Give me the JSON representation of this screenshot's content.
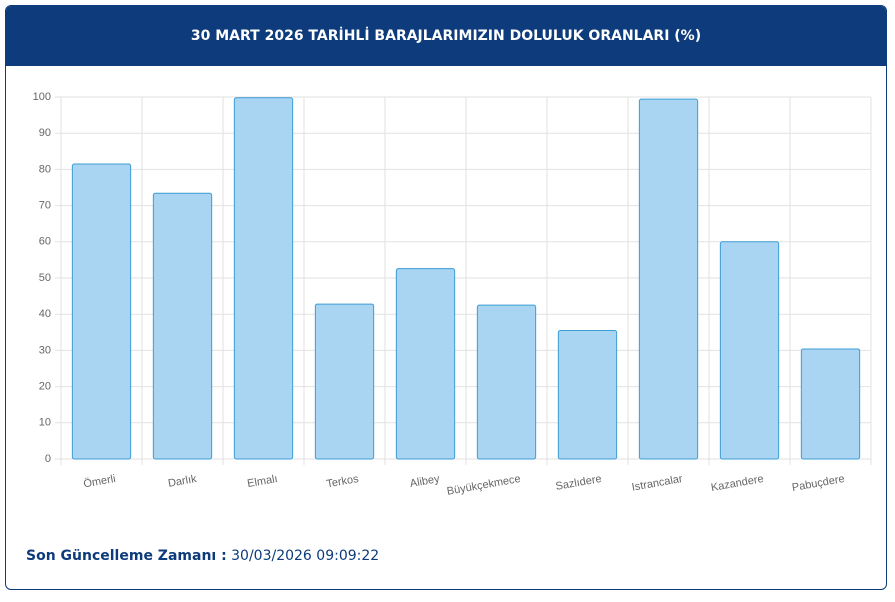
{
  "chart_data": {
    "type": "bar",
    "title": "30 MART 2026 TARİHLİ BARAJLARIMIZIN DOLULUK ORANLARI (%)",
    "categories": [
      "Ömerli",
      "Darlık",
      "Elmalı",
      "Terkos",
      "Alibey",
      "Büyükçekmece",
      "Sazlıdere",
      "Istrancalar",
      "Kazandere",
      "Pabuçdere"
    ],
    "values": [
      81.5,
      73.4,
      99.8,
      42.8,
      52.6,
      42.5,
      35.5,
      99.4,
      60,
      30.4
    ],
    "color": "#a9d5f2",
    "border_color": "#3b9dd6",
    "ylim": [
      0,
      100
    ],
    "yticks": [
      0,
      10,
      20,
      30,
      40,
      50,
      60,
      70,
      80,
      90,
      100
    ],
    "grid": true
  },
  "footer": {
    "label": "Son Güncelleme Zamanı :",
    "value": "30/03/2026 09:09:22"
  }
}
